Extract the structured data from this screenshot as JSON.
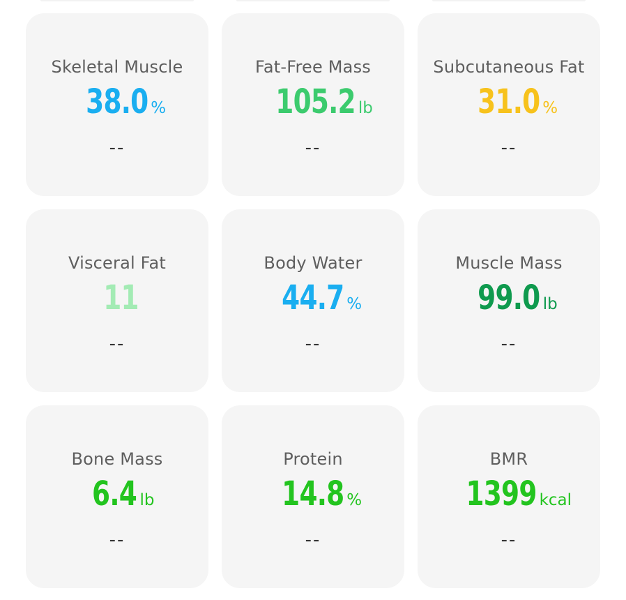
{
  "metrics": [
    {
      "label": "Skeletal Muscle",
      "value": "38.0",
      "unit": "%",
      "status": "--",
      "color": "#1aaef0"
    },
    {
      "label": "Fat-Free Mass",
      "value": "105.2",
      "unit": "lb",
      "status": "--",
      "color": "#3ccb6e"
    },
    {
      "label": "Subcutaneous Fat",
      "value": "31.0",
      "unit": "%",
      "status": "--",
      "color": "#f7c21c"
    },
    {
      "label": "Visceral Fat",
      "value": "11",
      "unit": "",
      "status": "--",
      "color": "#a3ebb4"
    },
    {
      "label": "Body Water",
      "value": "44.7",
      "unit": "%",
      "status": "--",
      "color": "#1aaef0"
    },
    {
      "label": "Muscle Mass",
      "value": "99.0",
      "unit": "lb",
      "status": "--",
      "color": "#0f9a4e"
    },
    {
      "label": "Bone Mass",
      "value": "6.4",
      "unit": "lb",
      "status": "--",
      "color": "#23c41f"
    },
    {
      "label": "Protein",
      "value": "14.8",
      "unit": "%",
      "status": "--",
      "color": "#23c41f"
    },
    {
      "label": "BMR",
      "value": "1399",
      "unit": "kcal",
      "status": "--",
      "color": "#23c41f"
    }
  ]
}
